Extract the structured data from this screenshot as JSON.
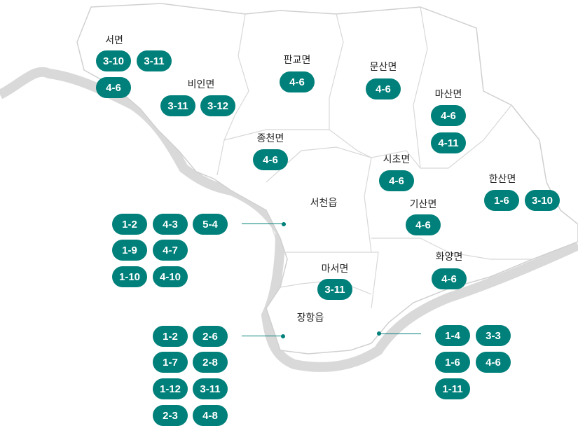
{
  "accent_color": "#00807a",
  "regions": [
    {
      "name": "서면",
      "badges": [
        "3-10",
        "3-11",
        "4-6"
      ]
    },
    {
      "name": "비인면",
      "badges": [
        "3-11",
        "3-12"
      ]
    },
    {
      "name": "판교면",
      "badges": [
        "4-6"
      ]
    },
    {
      "name": "문산면",
      "badges": [
        "4-6"
      ]
    },
    {
      "name": "마산면",
      "badges": [
        "4-6",
        "4-11"
      ]
    },
    {
      "name": "종천면",
      "badges": [
        "4-6"
      ]
    },
    {
      "name": "시초면",
      "badges": [
        "4-6"
      ]
    },
    {
      "name": "한산면",
      "badges": [
        "1-6",
        "3-10"
      ]
    },
    {
      "name": "기산면",
      "badges": [
        "4-6"
      ]
    },
    {
      "name": "서천읍",
      "badges": [
        "1-2",
        "4-3",
        "5-4",
        "1-9",
        "4-7",
        "1-10",
        "4-10"
      ]
    },
    {
      "name": "화양면",
      "badges": [
        "4-6"
      ]
    },
    {
      "name": "마서면",
      "badges": [
        "3-11"
      ]
    },
    {
      "name": "장항읍",
      "badges": [
        "1-2",
        "2-6",
        "1-7",
        "2-8",
        "1-12",
        "3-11",
        "2-3",
        "4-8"
      ]
    }
  ],
  "extra_group": {
    "badges": [
      "1-4",
      "3-3",
      "1-6",
      "4-6",
      "1-11"
    ]
  }
}
